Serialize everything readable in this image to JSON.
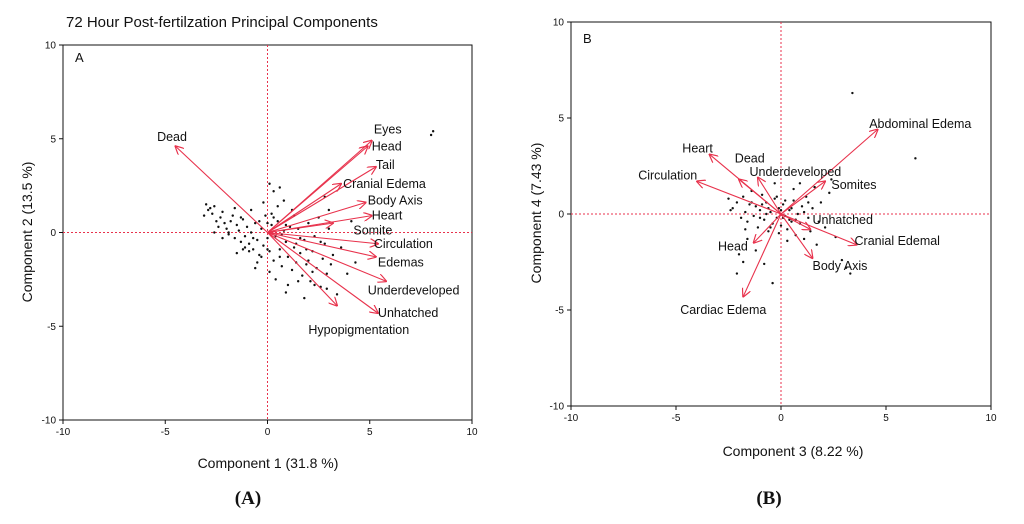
{
  "figure_title": "72 Hour Post-fertilzation Principal Components",
  "captions": [
    "(A)",
    "(B)"
  ],
  "colors": {
    "arrow": "#e8324c",
    "refline": "#e8324c",
    "point": "#111111",
    "axis": "#111111"
  },
  "chart_data": [
    {
      "type": "scatter",
      "panel": "A",
      "panel_label": "A",
      "caption": "(A)",
      "xlabel": "Component 1  (31.8 %)",
      "ylabel": "Component 2  (13.5 %)",
      "xlim": [
        -10,
        10
      ],
      "ylim": [
        -10,
        10
      ],
      "xticks": [
        -10,
        -5,
        0,
        5,
        10
      ],
      "yticks": [
        -10,
        -5,
        0,
        5,
        10
      ],
      "xtick_labels": [
        "-10",
        "-5",
        "0",
        "5",
        "10"
      ],
      "ytick_labels": [
        "-10",
        "-5",
        "0",
        "5",
        "10"
      ],
      "vectors": [
        {
          "label": "Dead",
          "x": -4.5,
          "y": 4.6,
          "label_x": -5.4,
          "label_y": 5.1
        },
        {
          "label": "Eyes",
          "x": 5.1,
          "y": 4.9,
          "label_x": 5.2,
          "label_y": 5.5
        },
        {
          "label": "Head",
          "x": 4.9,
          "y": 4.6,
          "label_x": 5.1,
          "label_y": 4.6
        },
        {
          "label": "Tail",
          "x": 5.3,
          "y": 3.5,
          "label_x": 5.3,
          "label_y": 3.6
        },
        {
          "label": "Cranial Edema",
          "x": 3.6,
          "y": 2.6,
          "label_x": 3.7,
          "label_y": 2.6
        },
        {
          "label": "Body Axis",
          "x": 4.8,
          "y": 1.6,
          "label_x": 4.9,
          "label_y": 1.7
        },
        {
          "label": "Heart",
          "x": 5.1,
          "y": 0.9,
          "label_x": 5.1,
          "label_y": 0.9
        },
        {
          "label": "Somite",
          "x": 3.2,
          "y": 0.5,
          "label_x": 4.2,
          "label_y": 0.1
        },
        {
          "label": "Circulation",
          "x": 5.4,
          "y": -0.6,
          "label_x": 5.2,
          "label_y": -0.6
        },
        {
          "label": "Edemas",
          "x": 5.3,
          "y": -1.3,
          "label_x": 5.4,
          "label_y": -1.6
        },
        {
          "label": "Underdeveloped",
          "x": 5.8,
          "y": -2.6,
          "label_x": 4.9,
          "label_y": -3.1
        },
        {
          "label": "Unhatched",
          "x": 5.4,
          "y": -4.3,
          "label_x": 5.4,
          "label_y": -4.3
        },
        {
          "label": "Hypopigmentation",
          "x": 3.4,
          "y": -3.9,
          "label_x": 2.0,
          "label_y": -5.2
        }
      ],
      "points": [
        [
          -3.0,
          1.5
        ],
        [
          -2.8,
          1.3
        ],
        [
          -2.9,
          1.2
        ],
        [
          -2.7,
          1.0
        ],
        [
          -3.1,
          0.9
        ],
        [
          -2.6,
          1.4
        ],
        [
          -2.5,
          0.6
        ],
        [
          -2.4,
          0.3
        ],
        [
          -2.3,
          0.8
        ],
        [
          -2.2,
          1.1
        ],
        [
          -2.1,
          0.5
        ],
        [
          -2.0,
          0.2
        ],
        [
          -1.9,
          -0.1
        ],
        [
          -1.8,
          0.6
        ],
        [
          -1.7,
          0.9
        ],
        [
          -1.6,
          -0.3
        ],
        [
          -1.5,
          0.4
        ],
        [
          -1.4,
          0.1
        ],
        [
          -1.3,
          -0.5
        ],
        [
          -1.2,
          0.7
        ],
        [
          -1.1,
          -0.2
        ],
        [
          -1.0,
          0.3
        ],
        [
          -0.9,
          -0.6
        ],
        [
          -0.8,
          0.0
        ],
        [
          -0.7,
          -0.9
        ],
        [
          -0.6,
          0.5
        ],
        [
          -0.5,
          -0.4
        ],
        [
          -0.4,
          -1.2
        ],
        [
          -0.3,
          0.2
        ],
        [
          -0.2,
          -0.7
        ],
        [
          -0.1,
          0.9
        ],
        [
          0.0,
          -0.3
        ],
        [
          0.1,
          -1.0
        ],
        [
          0.2,
          0.4
        ],
        [
          0.3,
          -1.5
        ],
        [
          0.4,
          -0.2
        ],
        [
          0.5,
          0.6
        ],
        [
          0.6,
          -0.9
        ],
        [
          0.7,
          -1.8
        ],
        [
          0.8,
          0.1
        ],
        [
          0.9,
          -0.5
        ],
        [
          1.0,
          -1.3
        ],
        [
          1.1,
          0.3
        ],
        [
          1.2,
          -2.0
        ],
        [
          1.3,
          -0.8
        ],
        [
          1.4,
          -1.6
        ],
        [
          1.5,
          0.2
        ],
        [
          1.6,
          -1.1
        ],
        [
          1.7,
          -2.3
        ],
        [
          1.8,
          -0.4
        ],
        [
          1.9,
          -1.7
        ],
        [
          2.0,
          0.5
        ],
        [
          2.1,
          -2.6
        ],
        [
          2.2,
          -1.0
        ],
        [
          2.3,
          -0.2
        ],
        [
          2.4,
          -1.9
        ],
        [
          2.5,
          0.8
        ],
        [
          2.6,
          -2.9
        ],
        [
          2.7,
          -1.4
        ],
        [
          2.8,
          -0.6
        ],
        [
          2.9,
          -2.2
        ],
        [
          3.0,
          0.2
        ],
        [
          3.2,
          -1.2
        ],
        [
          3.4,
          -3.3
        ],
        [
          3.6,
          -0.8
        ],
        [
          -0.5,
          -1.6
        ],
        [
          -0.9,
          -1.0
        ],
        [
          -1.3,
          0.8
        ],
        [
          -1.6,
          1.3
        ],
        [
          0.0,
          0.5
        ],
        [
          0.1,
          -2.1
        ],
        [
          0.4,
          -2.5
        ],
        [
          0.7,
          -0.1
        ],
        [
          1.0,
          -2.8
        ],
        [
          1.3,
          0.9
        ],
        [
          1.6,
          -0.3
        ],
        [
          2.0,
          -1.5
        ],
        [
          2.3,
          -2.8
        ],
        [
          2.6,
          -0.5
        ],
        [
          0.2,
          1.0
        ],
        [
          0.5,
          1.4
        ],
        [
          -0.2,
          1.6
        ],
        [
          0.3,
          2.2
        ],
        [
          0.8,
          1.7
        ],
        [
          1.2,
          1.2
        ],
        [
          -0.4,
          0.6
        ],
        [
          -1.9,
          0.0
        ],
        [
          -2.2,
          -0.3
        ],
        [
          -1.1,
          -0.8
        ],
        [
          -0.6,
          -1.9
        ],
        [
          0.0,
          -0.9
        ],
        [
          0.6,
          -1.3
        ],
        [
          1.9,
          -0.9
        ],
        [
          2.2,
          -2.1
        ],
        [
          1.5,
          -2.6
        ],
        [
          0.9,
          -3.2
        ],
        [
          1.8,
          -3.5
        ],
        [
          2.9,
          -3.0
        ],
        [
          3.1,
          -1.7
        ],
        [
          8.1,
          5.4
        ],
        [
          8.0,
          5.2
        ],
        [
          -0.7,
          -0.3
        ],
        [
          -1.2,
          -0.9
        ],
        [
          0.3,
          0.8
        ],
        [
          0.9,
          0.4
        ],
        [
          1.4,
          -0.6
        ],
        [
          -2.6,
          0.0
        ],
        [
          -1.5,
          -1.1
        ],
        [
          -0.3,
          -1.3
        ],
        [
          2.8,
          1.9
        ],
        [
          3.0,
          1.2
        ],
        [
          4.1,
          0.6
        ],
        [
          4.3,
          -1.6
        ],
        [
          3.9,
          -2.2
        ],
        [
          -0.8,
          1.2
        ],
        [
          0.6,
          2.4
        ],
        [
          0.1,
          2.6
        ]
      ]
    },
    {
      "type": "scatter",
      "panel": "B",
      "panel_label": "B",
      "caption": "(B)",
      "xlabel": "Component 3  (8.22 %)",
      "ylabel": "Component 4  (7.43 %)",
      "xlim": [
        -10,
        10
      ],
      "ylim": [
        -10,
        10
      ],
      "xticks": [
        -10,
        -5,
        0,
        5,
        10
      ],
      "yticks": [
        -10,
        -5,
        0,
        5,
        10
      ],
      "xtick_labels": [
        "-10",
        "-5",
        "0",
        "5",
        "10"
      ],
      "ytick_labels": [
        "-10",
        "-5",
        "0",
        "5",
        "10"
      ],
      "vectors": [
        {
          "label": "Abdominal Edema",
          "x": 4.6,
          "y": 4.4,
          "label_x": 4.2,
          "label_y": 4.7
        },
        {
          "label": "Heart",
          "x": -3.4,
          "y": 3.1,
          "label_x": -4.7,
          "label_y": 3.4
        },
        {
          "label": "Dead",
          "x": -2.0,
          "y": 1.8,
          "label_x": -2.2,
          "label_y": 2.9
        },
        {
          "label": "Underdeveloped",
          "x": -1.1,
          "y": 1.9,
          "label_x": -1.5,
          "label_y": 2.2
        },
        {
          "label": "Circulation",
          "x": -4.0,
          "y": 1.7,
          "label_x": -6.8,
          "label_y": 2.0
        },
        {
          "label": "Somites",
          "x": 2.1,
          "y": 1.7,
          "label_x": 2.4,
          "label_y": 1.5
        },
        {
          "label": "Unhatched",
          "x": 1.4,
          "y": -0.8,
          "label_x": 1.5,
          "label_y": -0.3
        },
        {
          "label": "Head",
          "x": -1.3,
          "y": -1.5,
          "label_x": -3.0,
          "label_y": -1.7
        },
        {
          "label": "Cranial Edemal",
          "x": 3.6,
          "y": -1.6,
          "label_x": 3.5,
          "label_y": -1.4
        },
        {
          "label": "Body Axis",
          "x": 1.5,
          "y": -2.3,
          "label_x": 1.5,
          "label_y": -2.7
        },
        {
          "label": "Cardiac Edema",
          "x": -1.8,
          "y": -4.3,
          "label_x": -4.8,
          "label_y": -5.0
        }
      ],
      "points": [
        [
          3.4,
          6.3
        ],
        [
          6.4,
          2.9
        ],
        [
          -2.5,
          0.8
        ],
        [
          -2.3,
          0.3
        ],
        [
          -2.1,
          0.6
        ],
        [
          -1.9,
          -0.2
        ],
        [
          -1.8,
          0.9
        ],
        [
          -1.7,
          0.1
        ],
        [
          -1.6,
          -0.4
        ],
        [
          -1.5,
          0.5
        ],
        [
          -1.4,
          1.2
        ],
        [
          -1.3,
          -0.1
        ],
        [
          -1.2,
          0.4
        ],
        [
          -1.1,
          -0.7
        ],
        [
          -1.0,
          0.2
        ],
        [
          -0.9,
          1.0
        ],
        [
          -0.8,
          -0.3
        ],
        [
          -0.7,
          0.6
        ],
        [
          -0.6,
          -0.9
        ],
        [
          -0.5,
          0.1
        ],
        [
          -0.4,
          -0.5
        ],
        [
          -0.3,
          0.8
        ],
        [
          -0.2,
          -0.2
        ],
        [
          -0.1,
          0.3
        ],
        [
          0.0,
          -0.6
        ],
        [
          0.1,
          0.5
        ],
        [
          0.2,
          -0.1
        ],
        [
          0.3,
          -0.8
        ],
        [
          0.4,
          0.2
        ],
        [
          0.5,
          -0.4
        ],
        [
          0.6,
          0.7
        ],
        [
          0.7,
          -1.1
        ],
        [
          0.8,
          0.0
        ],
        [
          0.9,
          -0.5
        ],
        [
          1.0,
          0.4
        ],
        [
          1.1,
          -1.3
        ],
        [
          1.2,
          0.9
        ],
        [
          1.3,
          -0.2
        ],
        [
          1.4,
          -0.9
        ],
        [
          1.5,
          0.3
        ],
        [
          1.7,
          -1.6
        ],
        [
          1.9,
          0.6
        ],
        [
          2.1,
          -0.7
        ],
        [
          2.3,
          1.1
        ],
        [
          2.6,
          -1.2
        ],
        [
          2.9,
          -2.4
        ],
        [
          3.1,
          -2.8
        ],
        [
          3.3,
          -3.1
        ],
        [
          -2.0,
          -2.1
        ],
        [
          -1.8,
          -2.5
        ],
        [
          -1.6,
          -1.3
        ],
        [
          -1.2,
          -1.9
        ],
        [
          -0.4,
          -3.6
        ],
        [
          -0.8,
          -2.6
        ],
        [
          -2.1,
          -3.1
        ],
        [
          0.6,
          1.3
        ],
        [
          0.9,
          1.6
        ],
        [
          1.6,
          1.4
        ],
        [
          2.4,
          1.8
        ],
        [
          -0.3,
          1.6
        ],
        [
          -0.6,
          0.3
        ],
        [
          -0.2,
          0.9
        ],
        [
          0.2,
          0.7
        ],
        [
          0.4,
          -0.3
        ],
        [
          0.0,
          0.2
        ],
        [
          -1.0,
          -0.2
        ],
        [
          0.7,
          -0.3
        ],
        [
          -0.5,
          -0.7
        ],
        [
          1.1,
          0.1
        ],
        [
          -1.4,
          0.6
        ],
        [
          0.3,
          -1.4
        ],
        [
          1.8,
          -0.4
        ],
        [
          -2.4,
          0.2
        ],
        [
          -0.9,
          0.5
        ],
        [
          0.1,
          -0.2
        ],
        [
          -0.1,
          -1.0
        ],
        [
          -0.7,
          0.0
        ],
        [
          0.5,
          0.3
        ],
        [
          1.3,
          0.6
        ],
        [
          -1.7,
          -0.8
        ]
      ]
    }
  ]
}
